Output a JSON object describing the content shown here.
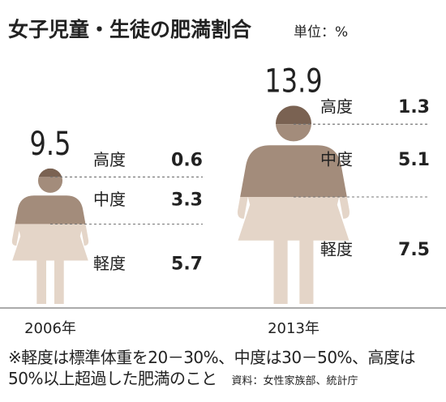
{
  "chart_data": {
    "type": "pictogram",
    "title": "女子児童・生徒の肥満割合",
    "unit": "単位：%",
    "categories": [
      "2006年",
      "2013年"
    ],
    "totals": [
      9.5,
      13.9
    ],
    "series": [
      {
        "name": "高度",
        "color": "#7a6252",
        "values": [
          0.6,
          1.3
        ]
      },
      {
        "name": "中度",
        "color": "#a38c7b",
        "values": [
          3.3,
          5.1
        ]
      },
      {
        "name": "軽度",
        "color": "#e4d5c8",
        "values": [
          5.7,
          7.5
        ]
      }
    ],
    "note": "※軽度は標準体重を20－30%、中度は30－50%、高度は50%以上超過した肥満のこと",
    "source": "資料：女性家族部、統計庁"
  }
}
